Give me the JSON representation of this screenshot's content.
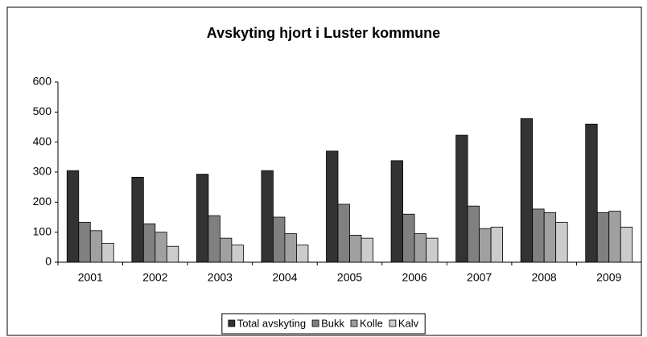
{
  "chart_data": {
    "type": "bar",
    "title": "Avskyting hjort i Luster kommune",
    "categories": [
      "2001",
      "2002",
      "2003",
      "2004",
      "2005",
      "2006",
      "2007",
      "2008",
      "2009"
    ],
    "series": [
      {
        "name": "Total avskyting",
        "color": "#333333",
        "values": [
          305,
          283,
          293,
          305,
          370,
          338,
          423,
          478,
          460
        ]
      },
      {
        "name": "Bukk",
        "color": "#808080",
        "values": [
          133,
          128,
          155,
          150,
          193,
          160,
          187,
          177,
          165
        ]
      },
      {
        "name": "Kolle",
        "color": "#a0a0a0",
        "values": [
          105,
          100,
          80,
          95,
          90,
          95,
          112,
          165,
          170
        ]
      },
      {
        "name": "Kalv",
        "color": "#cccccc",
        "values": [
          63,
          53,
          57,
          57,
          80,
          80,
          117,
          133,
          117
        ]
      }
    ],
    "ylim": [
      0,
      600
    ],
    "yticks": [
      0,
      100,
      200,
      300,
      400,
      500,
      600
    ],
    "grid": false,
    "legend": "bottom"
  }
}
